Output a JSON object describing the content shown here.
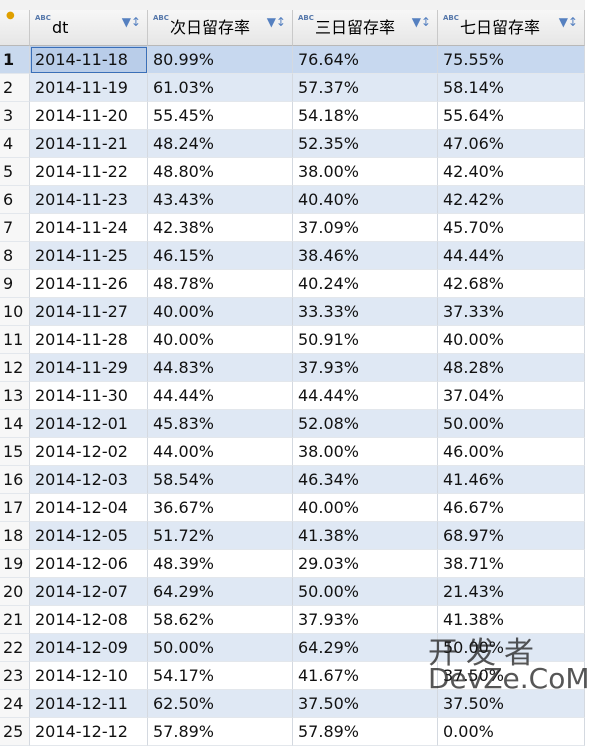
{
  "table": {
    "columns": [
      "dt",
      "次日留存率",
      "三日留存率",
      "七日留存率"
    ],
    "rows": [
      [
        "1",
        "2014-11-18",
        "80.99%",
        "76.64%",
        "75.55%"
      ],
      [
        "2",
        "2014-11-19",
        "61.03%",
        "57.37%",
        "58.14%"
      ],
      [
        "3",
        "2014-11-20",
        "55.45%",
        "54.18%",
        "55.64%"
      ],
      [
        "4",
        "2014-11-21",
        "48.24%",
        "52.35%",
        "47.06%"
      ],
      [
        "5",
        "2014-11-22",
        "48.80%",
        "38.00%",
        "42.40%"
      ],
      [
        "6",
        "2014-11-23",
        "43.43%",
        "40.40%",
        "42.42%"
      ],
      [
        "7",
        "2014-11-24",
        "42.38%",
        "37.09%",
        "45.70%"
      ],
      [
        "8",
        "2014-11-25",
        "46.15%",
        "38.46%",
        "44.44%"
      ],
      [
        "9",
        "2014-11-26",
        "48.78%",
        "40.24%",
        "42.68%"
      ],
      [
        "10",
        "2014-11-27",
        "40.00%",
        "33.33%",
        "37.33%"
      ],
      [
        "11",
        "2014-11-28",
        "40.00%",
        "50.91%",
        "40.00%"
      ],
      [
        "12",
        "2014-11-29",
        "44.83%",
        "37.93%",
        "48.28%"
      ],
      [
        "13",
        "2014-11-30",
        "44.44%",
        "44.44%",
        "37.04%"
      ],
      [
        "14",
        "2014-12-01",
        "45.83%",
        "52.08%",
        "50.00%"
      ],
      [
        "15",
        "2014-12-02",
        "44.00%",
        "38.00%",
        "46.00%"
      ],
      [
        "16",
        "2014-12-03",
        "58.54%",
        "46.34%",
        "41.46%"
      ],
      [
        "17",
        "2014-12-04",
        "36.67%",
        "40.00%",
        "46.67%"
      ],
      [
        "18",
        "2014-12-05",
        "51.72%",
        "41.38%",
        "68.97%"
      ],
      [
        "19",
        "2014-12-06",
        "48.39%",
        "29.03%",
        "38.71%"
      ],
      [
        "20",
        "2014-12-07",
        "64.29%",
        "50.00%",
        "21.43%"
      ],
      [
        "21",
        "2014-12-08",
        "58.62%",
        "37.93%",
        "41.38%"
      ],
      [
        "22",
        "2014-12-09",
        "50.00%",
        "64.29%",
        "50.00%"
      ],
      [
        "23",
        "2014-12-10",
        "54.17%",
        "41.67%",
        "37.50%"
      ],
      [
        "24",
        "2014-12-11",
        "62.50%",
        "37.50%",
        "37.50%"
      ],
      [
        "25",
        "2014-12-12",
        "57.89%",
        "57.89%",
        "0.00%"
      ]
    ]
  },
  "watermark": {
    "title": "开发者",
    "site": "DevZe.CoM"
  }
}
